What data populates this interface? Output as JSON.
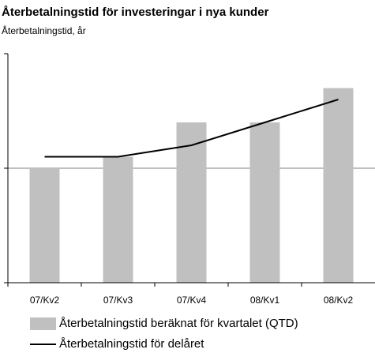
{
  "chart_data": {
    "type": "bar",
    "title": "Återbetalningstid för investeringar i nya kunder",
    "subtitle": "Återbetalningstid, år",
    "categories": [
      "07/Kv2",
      "07/Kv3",
      "07/Kv4",
      "08/Kv1",
      "08/Kv2"
    ],
    "series": [
      {
        "name": "Återbetalningstid beräknat för kvartalet (QTD)",
        "type": "bar",
        "color": "#c0c0c0",
        "values": [
          1.0,
          1.1,
          1.4,
          1.4,
          1.7
        ]
      },
      {
        "name": "Återbetalningstid för delåret",
        "type": "line",
        "color": "#000000",
        "values": [
          1.1,
          1.1,
          1.2,
          1.4,
          1.6
        ]
      }
    ],
    "ylim": [
      0,
      2
    ],
    "yticks": [
      0,
      1,
      2
    ],
    "grid": true
  }
}
